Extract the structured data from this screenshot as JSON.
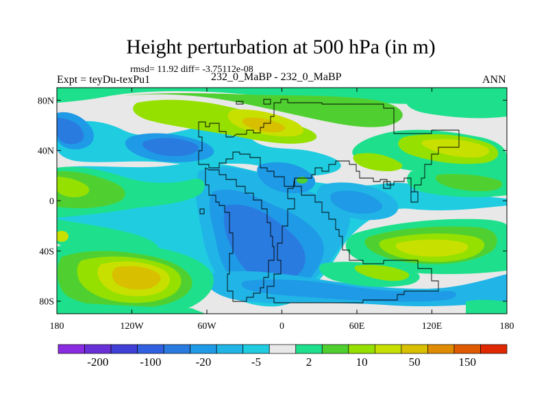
{
  "header": {
    "title": "Height perturbation at 500 hPa (in m)",
    "stats": "rmsd= 11.92 diff= -3.75112e-08",
    "left": "Expt = teyDu-texPu1",
    "center": "232_0_MaBP - 232_0_MaBP",
    "right": "ANN"
  },
  "axes": {
    "lat_ticks": [
      {
        "label": "80N",
        "value": 80
      },
      {
        "label": "40N",
        "value": 40
      },
      {
        "label": "0",
        "value": 0
      },
      {
        "label": "40S",
        "value": -40
      },
      {
        "label": "80S",
        "value": -80
      }
    ],
    "lon_ticks": [
      {
        "label": "180",
        "value": -180
      },
      {
        "label": "120W",
        "value": -120
      },
      {
        "label": "60W",
        "value": -60
      },
      {
        "label": "0",
        "value": 0
      },
      {
        "label": "60E",
        "value": 60
      },
      {
        "label": "120E",
        "value": 120
      },
      {
        "label": "180",
        "value": 180
      }
    ],
    "lon_range": [
      -180,
      180
    ],
    "lat_range": [
      -90,
      90
    ]
  },
  "colorbar": {
    "colors": [
      "#8a2be2",
      "#6a30d8",
      "#4040d8",
      "#3060e0",
      "#2a7be0",
      "#1f9ae6",
      "#20b5e6",
      "#1fcce0",
      "#e8e8e8",
      "#1ee08c",
      "#50d030",
      "#96e000",
      "#c8e000",
      "#d8c000",
      "#e08c00",
      "#e05a00",
      "#e02800"
    ],
    "labels": [
      {
        "text": "-200",
        "index": 1
      },
      {
        "text": "-100",
        "index": 3
      },
      {
        "text": "-20",
        "index": 5
      },
      {
        "text": "-5",
        "index": 7
      },
      {
        "text": "2",
        "index": 9
      },
      {
        "text": "10",
        "index": 11
      },
      {
        "text": "50",
        "index": 13
      },
      {
        "text": "150",
        "index": 15
      }
    ]
  },
  "palette": {
    "neutral": "#e8e8e8",
    "cyan": "#1fcce0",
    "lightblue": "#20b5e6",
    "blue": "#1f9ae6",
    "midblue": "#2a7be0",
    "teal": "#1ee08c",
    "green": "#50d030",
    "lime": "#96e000",
    "yellow": "#c8e000",
    "gold": "#d8c000",
    "orange": "#e08c00"
  }
}
